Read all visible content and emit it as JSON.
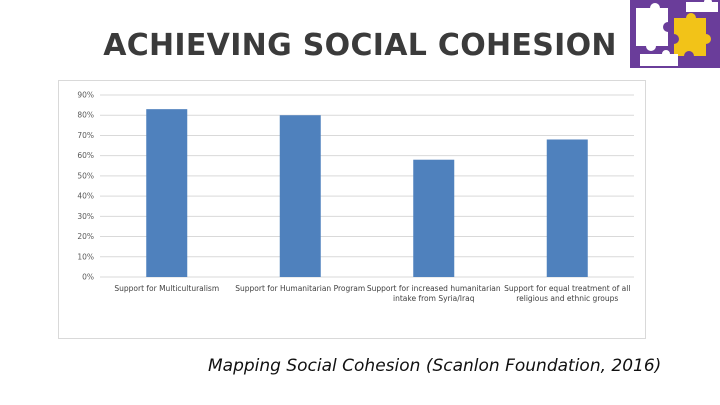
{
  "slide": {
    "title": "ACHIEVING SOCIAL COHESION",
    "source": "Mapping Social Cohesion (Scanlon Foundation, 2016)",
    "logo_icon": "puzzle-pieces-logo",
    "logo_colors": {
      "background": "#6a3d9a",
      "piece_white": "#ffffff",
      "piece_yellow": "#f2c318"
    }
  },
  "chart_data": {
    "type": "bar",
    "title": "",
    "xlabel": "",
    "ylabel": "",
    "categories": [
      [
        "Support for Multiculturalism"
      ],
      [
        "Support for Humanitarian Program"
      ],
      [
        "Support for increased humanitarian",
        "intake from Syria/Iraq"
      ],
      [
        "Support for equal treatment of all",
        "religious and ethnic groups"
      ]
    ],
    "values": [
      83,
      80,
      58,
      68
    ],
    "ylim": [
      0,
      90
    ],
    "yticks": [
      "0%",
      "10%",
      "20%",
      "30%",
      "40%",
      "50%",
      "60%",
      "70%",
      "80%",
      "90%"
    ],
    "grid": true,
    "legend": "none",
    "bar_color": "#4f81bd",
    "grid_color": "#d9d9d9"
  }
}
